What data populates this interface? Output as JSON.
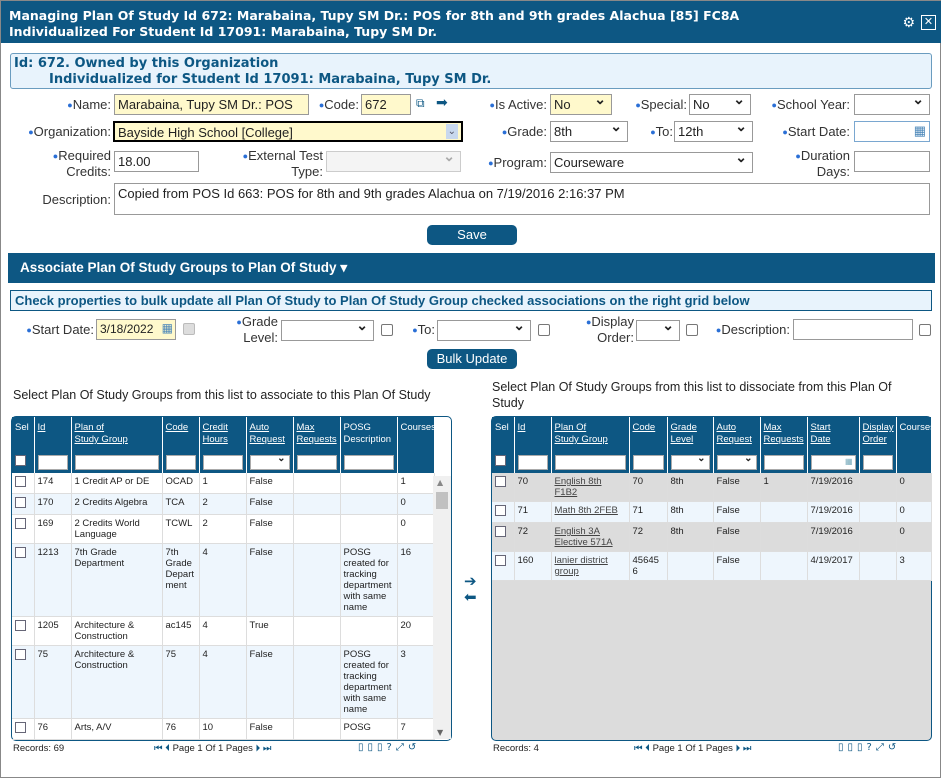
{
  "window": {
    "title_line1": "Managing Plan Of Study Id 672: Marabaina, Tupy SM Dr.: POS for 8th and 9th grades Alachua [85] FC8A",
    "title_line2": "Individualized For Student Id 17091: Marabaina, Tupy SM Dr."
  },
  "info": {
    "line1": "Id: 672. Owned by this Organization",
    "line2": "Individualized for Student Id 17091: Marabaina, Tupy SM Dr."
  },
  "form": {
    "name_label": "Name:",
    "name_value": "Marabaina, Tupy SM Dr.: POS",
    "code_label": "Code:",
    "code_value": "672",
    "active_label": "Is Active:",
    "active_value": "No",
    "special_label": "Special:",
    "special_value": "No",
    "year_label": "School Year:",
    "year_value": "",
    "org_label": "Organization:",
    "org_value": "Bayside High School [College]",
    "grade_label": "Grade:",
    "grade_value": "8th",
    "to_label": "To:",
    "to_value": "12th",
    "start_label": "Start Date:",
    "start_value": "",
    "credits_label1": "Required",
    "credits_label2": "Credits:",
    "credits_value": "18.00",
    "ext_label1": "External Test",
    "ext_label2": "Type:",
    "ext_value": "",
    "program_label": "Program:",
    "program_value": "Courseware",
    "duration_label1": "Duration",
    "duration_label2": "Days:",
    "duration_value": "",
    "desc_label": "Description:",
    "desc_value": "Copied from POS Id 663: POS for 8th and 9th grades Alachua on 7/19/2016 2:16:37 PM",
    "save": "Save"
  },
  "section": {
    "title": "Associate Plan Of Study Groups to Plan Of Study",
    "info": "Check properties to bulk update all Plan Of Study to Plan Of Study Group checked associations on the right grid below"
  },
  "bulk": {
    "start_label": "Start Date:",
    "start_value": "3/18/2022",
    "grade_label1": "Grade",
    "grade_label2": "Level:",
    "to_label": "To:",
    "order_label1": "Display",
    "order_label2": "Order:",
    "desc_label": "Description:",
    "button": "Bulk Update"
  },
  "left": {
    "caption": "Select Plan Of Study Groups from this list to associate to this Plan Of Study",
    "columns": [
      "Sel",
      "Id",
      "Plan of Study Group",
      "Code",
      "Credit Hours",
      "Auto Request",
      "Max Requests",
      "POSG Description",
      "Courses"
    ],
    "rows": [
      [
        "174",
        "1 Credit AP or DE",
        "OCAD",
        "1",
        "False",
        "",
        "",
        "1"
      ],
      [
        "170",
        "2 Credits Algebra",
        "TCA",
        "2",
        "False",
        "",
        "",
        "0"
      ],
      [
        "169",
        "2 Credits World Language",
        "TCWL",
        "2",
        "False",
        "",
        "",
        "0"
      ],
      [
        "1213",
        "7th Grade Department",
        "7th Grade Department",
        "4",
        "False",
        "",
        "POSG created for tracking department with same name",
        "16"
      ],
      [
        "1205",
        "Architecture & Construction",
        "ac145",
        "4",
        "True",
        "",
        "",
        "20"
      ],
      [
        "75",
        "Architecture & Construction",
        "75",
        "4",
        "False",
        "",
        "POSG created for tracking department with same name",
        "3"
      ],
      [
        "76",
        "Arts, A/V",
        "76",
        "10",
        "False",
        "",
        "POSG",
        "7"
      ]
    ],
    "records": "Records: 69",
    "pager": "Page 1 Of 1 Pages"
  },
  "right": {
    "caption": "Select Plan Of Study Groups from this list to dissociate from this Plan Of Study",
    "columns": [
      "Sel",
      "Id",
      "Plan Of Study Group",
      "Code",
      "Grade Level",
      "Auto Request",
      "Max Requests",
      "Start Date",
      "Display Order",
      "Courses"
    ],
    "rows": [
      [
        "70",
        "English 8th F1B2",
        "70",
        "8th",
        "False",
        "1",
        "7/19/2016",
        "",
        "0"
      ],
      [
        "71",
        "Math 8th 2FEB",
        "71",
        "8th",
        "False",
        "",
        "7/19/2016",
        "",
        "0"
      ],
      [
        "72",
        "English 3A Elective 571A",
        "72",
        "8th",
        "False",
        "",
        "7/19/2016",
        "",
        "0"
      ],
      [
        "160",
        "lanier district group",
        "456456",
        "",
        "False",
        "",
        "4/19/2017",
        "",
        "3"
      ]
    ],
    "records": "Records: 4",
    "pager": "Page 1 Of 1 Pages"
  },
  "colors": {
    "primary": "#0d5783",
    "highlight": "#fff9cc",
    "info_bg": "#e8f3fc"
  }
}
